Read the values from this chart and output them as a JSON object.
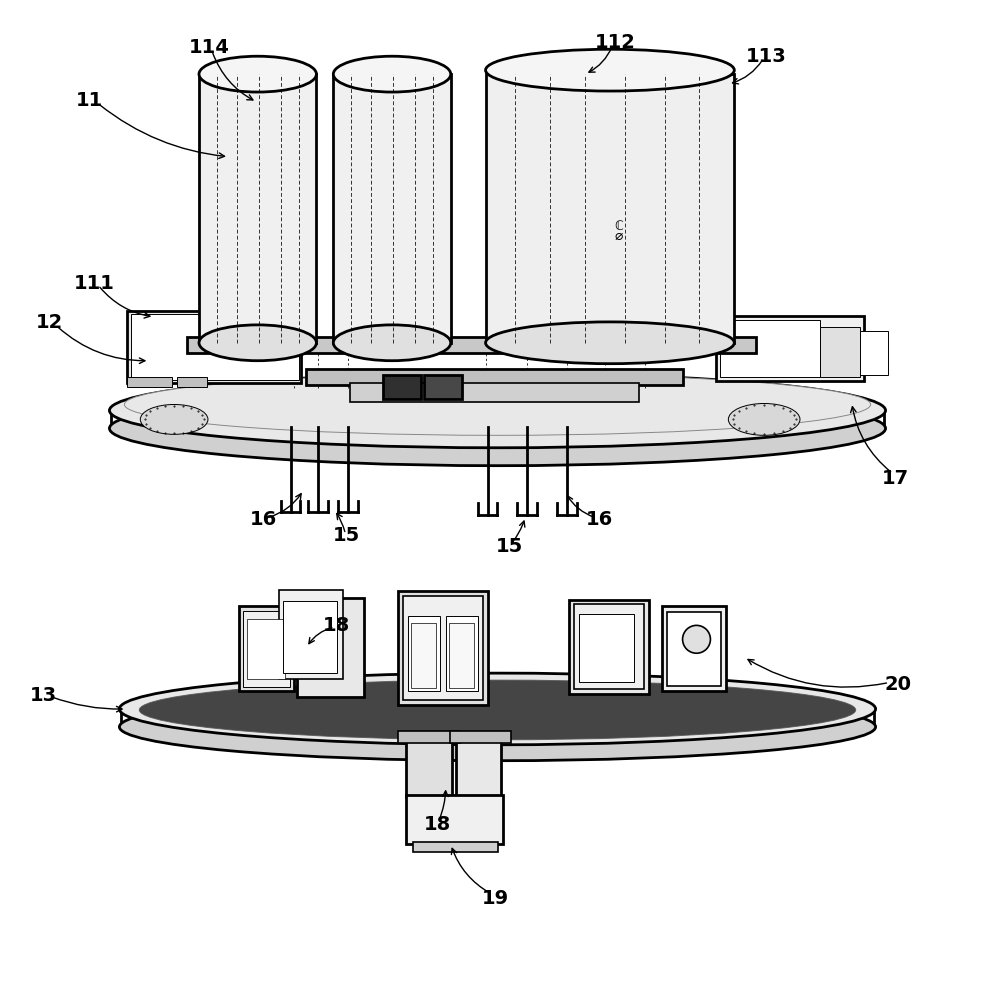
{
  "background_color": "#ffffff",
  "line_color": "#000000",
  "fig_width": 9.95,
  "fig_height": 10.0,
  "dpi": 100
}
